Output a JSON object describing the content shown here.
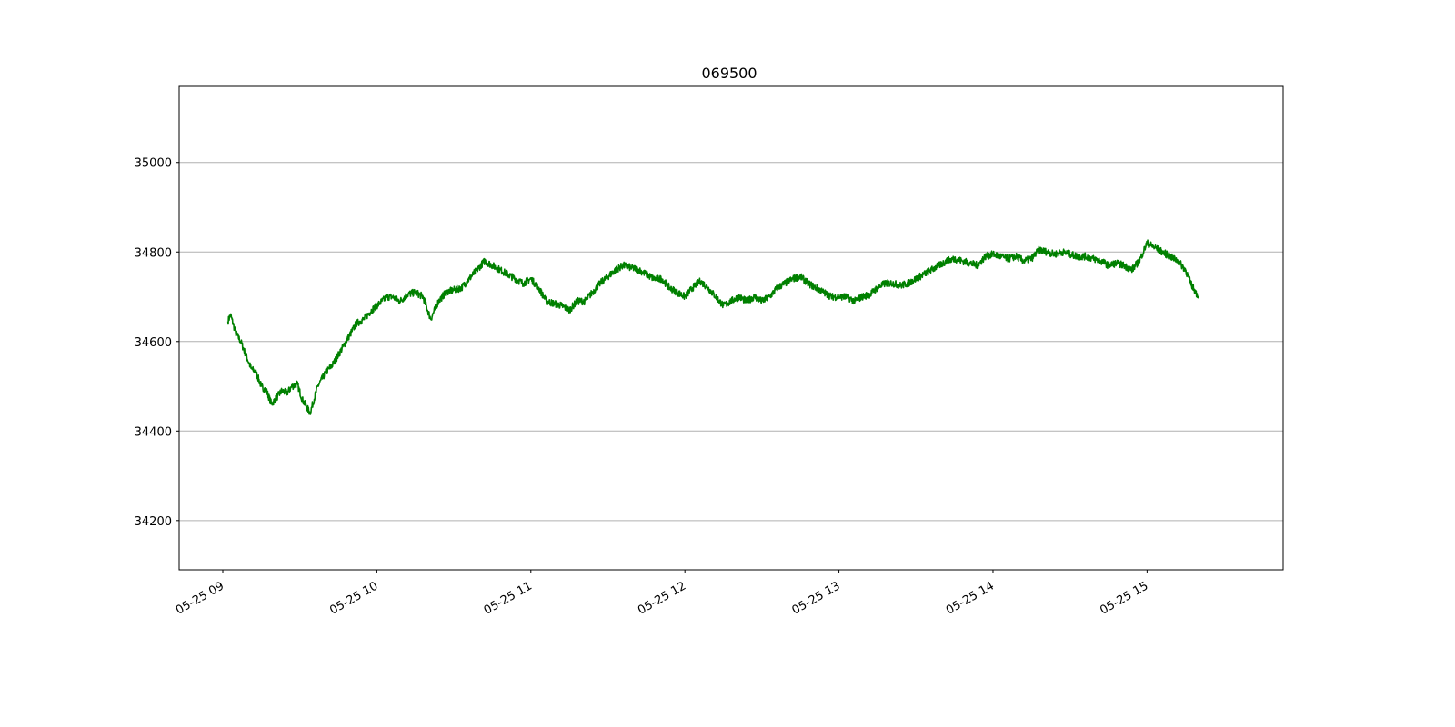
{
  "chart_data": {
    "type": "line",
    "title": "069500",
    "xlabel": "",
    "ylabel": "",
    "grid": "y-axis horizontal",
    "legend": "none",
    "line_color": "#008000",
    "x_ticks": [
      "05-25 09",
      "05-25 10",
      "05-25 11",
      "05-25 12",
      "05-25 13",
      "05-25 14",
      "05-25 15"
    ],
    "y_ticks": [
      34200,
      34400,
      34600,
      34800,
      35000
    ],
    "xlim": [
      "05-25 08:43",
      "05-25 15:53"
    ],
    "ylim": [
      34090,
      35170
    ],
    "series": [
      {
        "x": [
          "09:02",
          "09:03",
          "09:05",
          "09:07",
          "09:09",
          "09:11",
          "09:13",
          "09:15",
          "09:17",
          "09:19",
          "09:21",
          "09:23",
          "09:25",
          "09:27",
          "09:29",
          "09:31",
          "09:34",
          "09:37",
          "09:40",
          "09:43",
          "09:46",
          "09:49",
          "09:52",
          "09:55",
          "09:58",
          "10:01",
          "10:04",
          "10:06",
          "10:09",
          "10:12",
          "10:15",
          "10:18",
          "10:21",
          "10:24",
          "10:27",
          "10:30",
          "10:33",
          "10:36",
          "10:39",
          "10:42",
          "10:45",
          "10:48",
          "10:51",
          "10:54",
          "10:57",
          "11:00",
          "11:03",
          "11:06",
          "11:09",
          "11:12",
          "11:15",
          "11:18",
          "11:21",
          "11:24",
          "11:27",
          "11:30",
          "11:33",
          "11:36",
          "11:39",
          "11:42",
          "11:45",
          "11:48",
          "11:51",
          "11:54",
          "11:57",
          "12:00",
          "12:03",
          "12:06",
          "12:09",
          "12:12",
          "12:15",
          "12:18",
          "12:21",
          "12:24",
          "12:27",
          "12:30",
          "12:33",
          "12:36",
          "12:39",
          "12:42",
          "12:45",
          "12:48",
          "12:51",
          "12:54",
          "12:57",
          "13:00",
          "13:03",
          "13:06",
          "13:09",
          "13:12",
          "13:15",
          "13:18",
          "13:21",
          "13:24",
          "13:27",
          "13:30",
          "13:33",
          "13:36",
          "13:39",
          "13:42",
          "13:45",
          "13:48",
          "13:51",
          "13:54",
          "13:57",
          "14:00",
          "14:03",
          "14:06",
          "14:09",
          "14:12",
          "14:15",
          "14:18",
          "14:21",
          "14:24",
          "14:27",
          "14:30",
          "14:33",
          "14:36",
          "14:39",
          "14:42",
          "14:45",
          "14:48",
          "14:51",
          "14:54",
          "14:57",
          "15:00",
          "15:03",
          "15:06",
          "15:09",
          "15:12",
          "15:15",
          "15:17",
          "15:19",
          "15:20"
        ],
        "y": [
          34645,
          34660,
          34620,
          34600,
          34570,
          34540,
          34530,
          34500,
          34490,
          34460,
          34475,
          34490,
          34485,
          34500,
          34505,
          34470,
          34440,
          34500,
          34530,
          34550,
          34580,
          34610,
          34640,
          34650,
          34670,
          34685,
          34700,
          34700,
          34690,
          34705,
          34710,
          34700,
          34650,
          34690,
          34710,
          34715,
          34720,
          34740,
          34760,
          34780,
          34770,
          34760,
          34750,
          34740,
          34730,
          34740,
          34720,
          34690,
          34685,
          34680,
          34670,
          34690,
          34690,
          34710,
          34730,
          34745,
          34760,
          34770,
          34765,
          34760,
          34750,
          34740,
          34740,
          34720,
          34710,
          34700,
          34720,
          34735,
          34720,
          34700,
          34680,
          34690,
          34700,
          34690,
          34700,
          34690,
          34700,
          34720,
          34730,
          34740,
          34745,
          34730,
          34720,
          34710,
          34700,
          34700,
          34700,
          34690,
          34700,
          34705,
          34720,
          34730,
          34730,
          34725,
          34730,
          34740,
          34750,
          34760,
          34770,
          34780,
          34785,
          34780,
          34775,
          34770,
          34790,
          34795,
          34790,
          34785,
          34790,
          34780,
          34785,
          34805,
          34800,
          34795,
          34800,
          34795,
          34790,
          34790,
          34785,
          34780,
          34770,
          34775,
          34770,
          34760,
          34780,
          34820,
          34810,
          34800,
          34790,
          34780,
          34760,
          34730,
          34710,
          34700
        ]
      }
    ]
  }
}
